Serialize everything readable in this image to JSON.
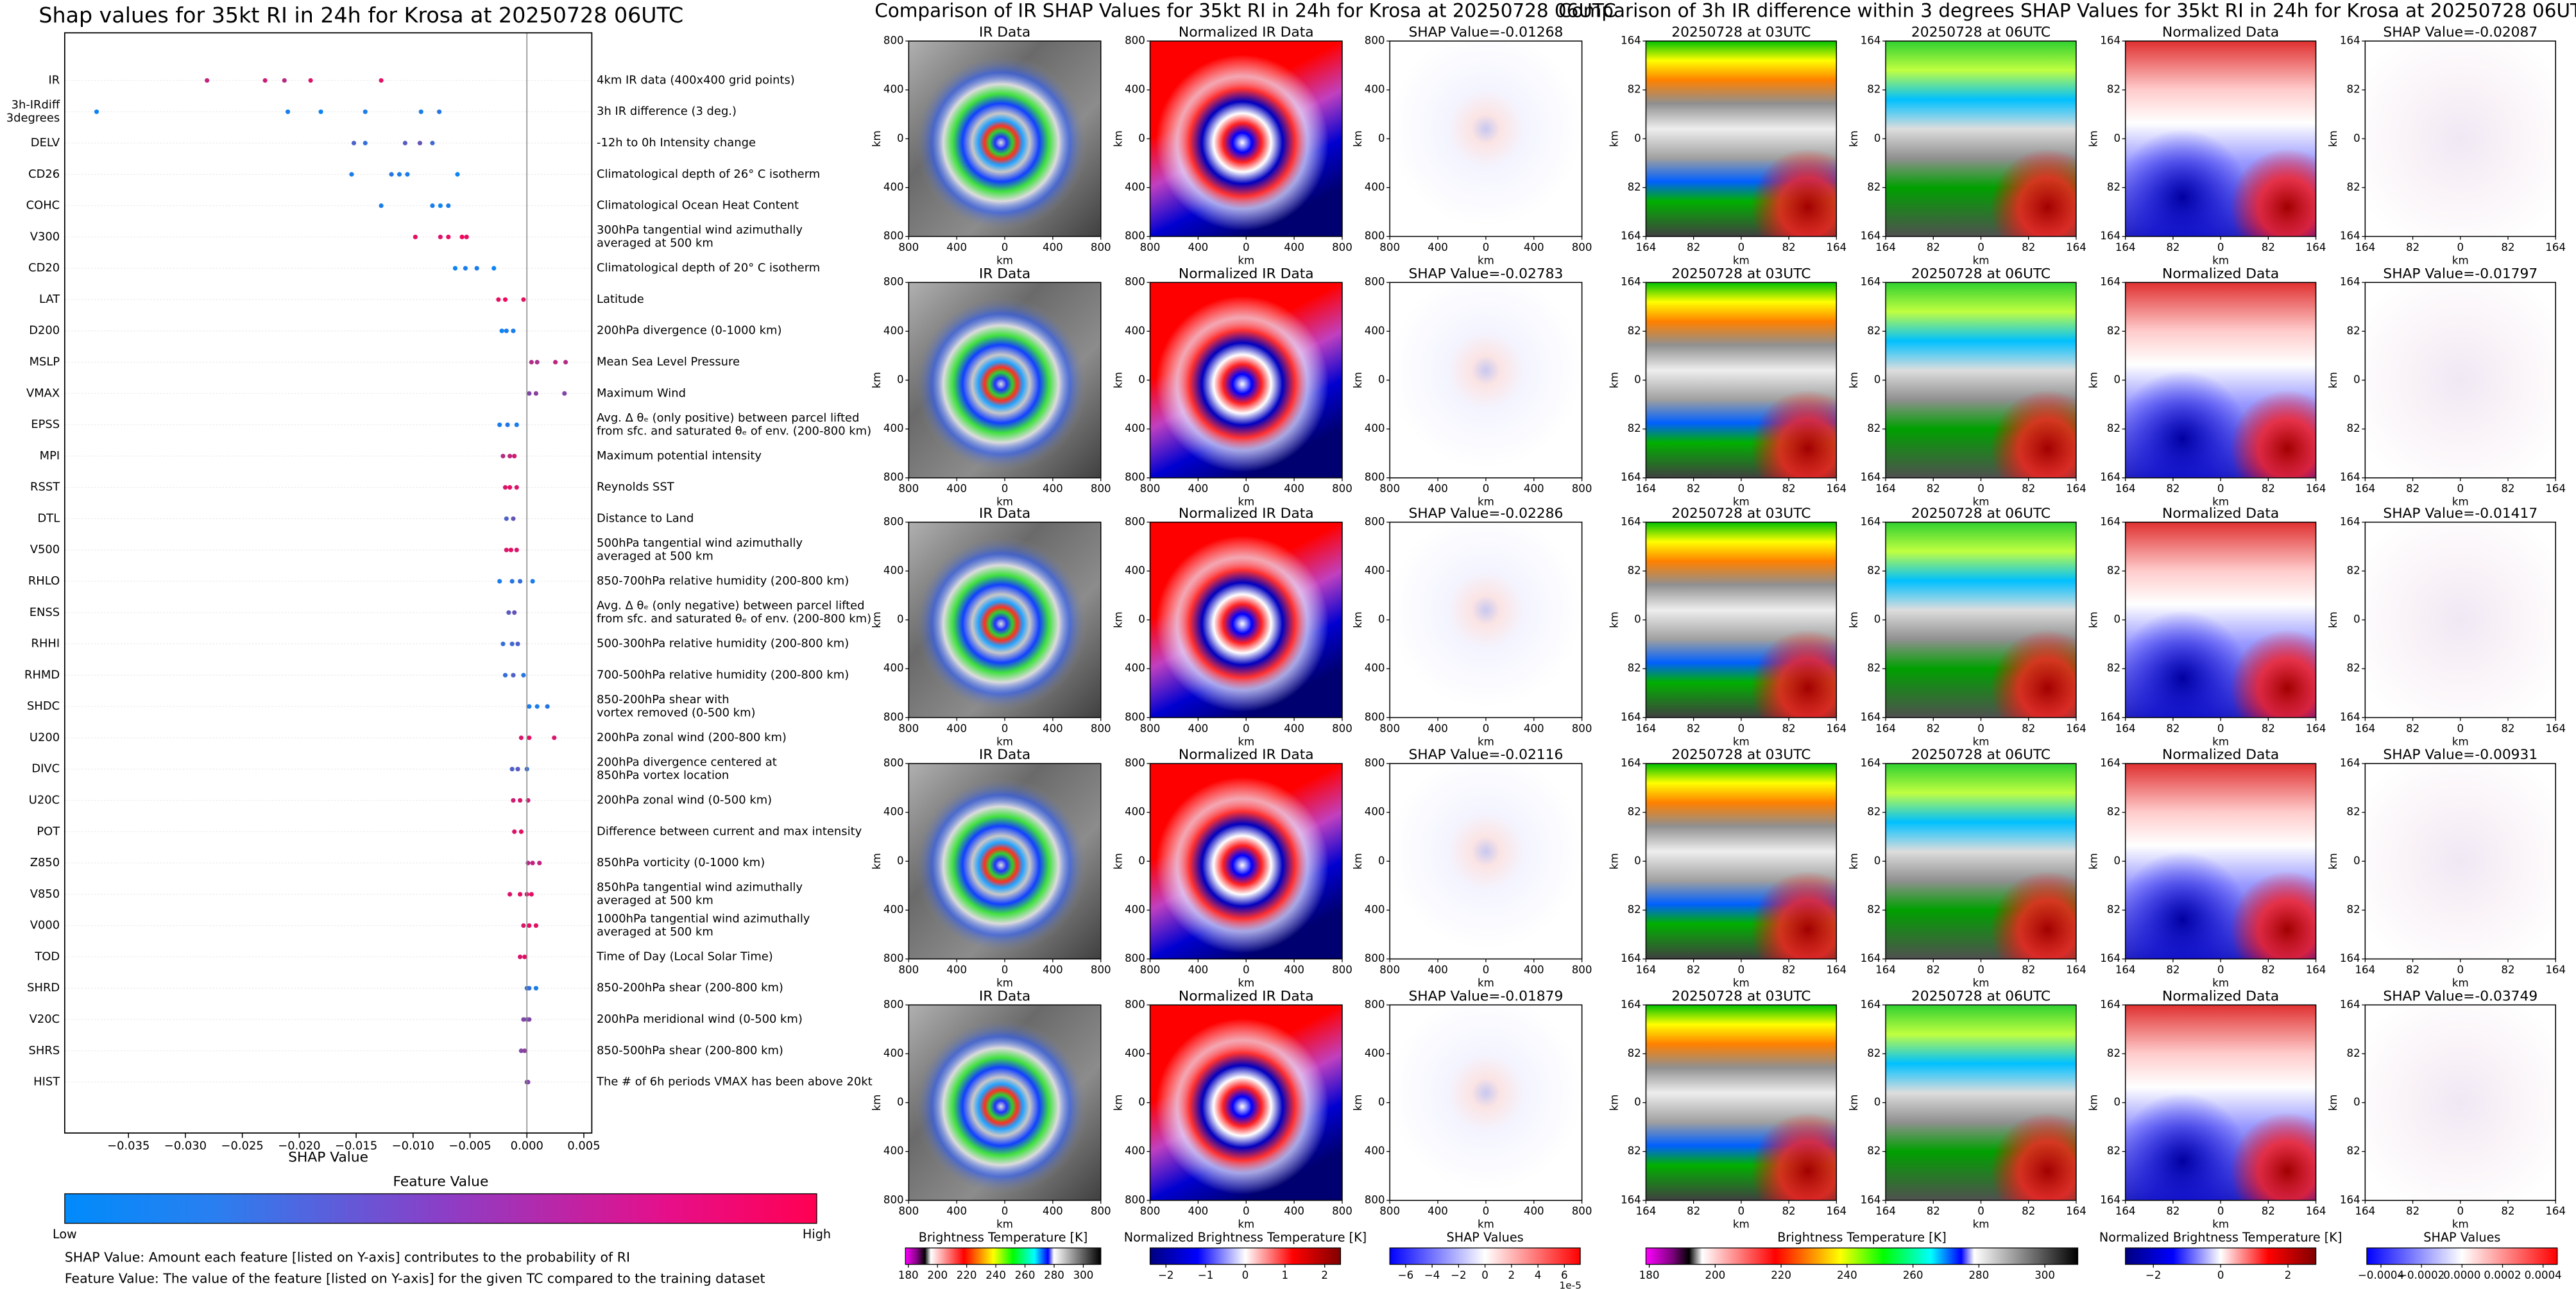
{
  "chart_data": {
    "type": "strip",
    "title": "Shap values for 35kt RI in 24h for Krosa at 20250728 06UTC",
    "xlabel": "SHAP Value",
    "xlim": [
      -0.0406,
      0.0057
    ],
    "xticks": [
      {
        "value": -0.035,
        "label": "−0.035"
      },
      {
        "value": -0.03,
        "label": "−0.030"
      },
      {
        "value": -0.025,
        "label": "−0.025"
      },
      {
        "value": -0.02,
        "label": "−0.020"
      },
      {
        "value": -0.015,
        "label": "−0.015"
      },
      {
        "value": -0.01,
        "label": "−0.010"
      },
      {
        "value": -0.005,
        "label": "−0.005"
      },
      {
        "value": 0,
        "label": "0.000"
      },
      {
        "value": 0.005,
        "label": "0.005"
      }
    ],
    "colorscale": [
      "#008bfb",
      "#ff0052"
    ],
    "colorbar_title": "Feature Value",
    "colorbar_low": "Low",
    "colorbar_high": "High",
    "notes": [
      "SHAP Value: Amount each feature [listed on Y-axis] contributes to the probability of RI",
      "Feature Value: The value of the feature [listed on Y-axis] for the given TC compared to the training dataset"
    ],
    "features": [
      {
        "name": [
          "IR"
        ],
        "description": [
          "4km IR data (400x400 grid points)"
        ],
        "values": [
          -0.0281,
          -0.023,
          -0.0213,
          -0.019,
          -0.0128
        ],
        "feature_values": [
          0.75,
          0.8,
          0.7,
          0.85,
          0.9
        ]
      },
      {
        "name": [
          "3h-IRdiff",
          "3degrees"
        ],
        "description": [
          "3h IR difference (3 deg.)"
        ],
        "values": [
          -0.0378,
          -0.021,
          -0.0181,
          -0.0142,
          -0.0093,
          -0.0077
        ],
        "feature_values": [
          0.05,
          0.1,
          0.05,
          0.1,
          0.1,
          0.15
        ]
      },
      {
        "name": [
          "DELV"
        ],
        "description": [
          "-12h to 0h Intensity change"
        ],
        "values": [
          -0.0152,
          -0.0142,
          -0.0107,
          -0.0094,
          -0.0083
        ],
        "feature_values": [
          0.3,
          0.2,
          0.35,
          0.4,
          0.25
        ]
      },
      {
        "name": [
          "CD26"
        ],
        "description": [
          "Climatological depth of 26° C isotherm"
        ],
        "values": [
          -0.0154,
          -0.0119,
          -0.0112,
          -0.0105,
          -0.0061
        ],
        "feature_values": [
          0.1,
          0.15,
          0.1,
          0.1,
          0.05
        ]
      },
      {
        "name": [
          "COHC"
        ],
        "description": [
          "Climatological Ocean Heat Content"
        ],
        "values": [
          -0.0128,
          -0.0083,
          -0.0076,
          -0.0069
        ],
        "feature_values": [
          0.1,
          0.1,
          0.05,
          0.1
        ]
      },
      {
        "name": [
          "V300"
        ],
        "description": [
          "300hPa tangential wind azimuthally",
          "averaged at 500 km"
        ],
        "values": [
          -0.0098,
          -0.0076,
          -0.0069,
          -0.0057,
          -0.0053
        ],
        "feature_values": [
          0.9,
          0.85,
          0.9,
          0.95,
          0.9
        ]
      },
      {
        "name": [
          "CD20"
        ],
        "description": [
          "Climatological depth of 20° C isotherm"
        ],
        "values": [
          -0.0063,
          -0.0054,
          -0.0044,
          -0.0029
        ],
        "feature_values": [
          0.05,
          0.1,
          0.1,
          0.05
        ]
      },
      {
        "name": [
          "LAT"
        ],
        "description": [
          "Latitude"
        ],
        "values": [
          -0.0025,
          -0.0019,
          -0.0003
        ],
        "feature_values": [
          0.9,
          0.95,
          0.9
        ]
      },
      {
        "name": [
          "D200"
        ],
        "description": [
          "200hPa divergence (0-1000 km)"
        ],
        "values": [
          -0.0022,
          -0.0018,
          -0.0012
        ],
        "feature_values": [
          0.05,
          0.1,
          0.1
        ]
      },
      {
        "name": [
          "MSLP"
        ],
        "description": [
          "Mean Sea Level Pressure"
        ],
        "values": [
          0.0004,
          0.0009,
          0.0025,
          0.0034
        ],
        "feature_values": [
          0.7,
          0.65,
          0.75,
          0.7
        ]
      },
      {
        "name": [
          "VMAX"
        ],
        "description": [
          "Maximum Wind"
        ],
        "values": [
          0.0002,
          0.0008,
          0.0033
        ],
        "feature_values": [
          0.5,
          0.55,
          0.5
        ]
      },
      {
        "name": [
          "EPSS"
        ],
        "description": [
          "Avg. Δ θₑ (only positive) between parcel lifted",
          "from sfc. and saturated θₑ of env. (200-800 km)"
        ],
        "values": [
          -0.0024,
          -0.0017,
          -0.0009
        ],
        "feature_values": [
          0.1,
          0.15,
          0.1
        ]
      },
      {
        "name": [
          "MPI"
        ],
        "description": [
          "Maximum potential intensity"
        ],
        "values": [
          -0.0021,
          -0.0015,
          -0.0011
        ],
        "feature_values": [
          0.7,
          0.75,
          0.8
        ]
      },
      {
        "name": [
          "RSST"
        ],
        "description": [
          "Reynolds SST"
        ],
        "values": [
          -0.0019,
          -0.0015,
          -0.0009
        ],
        "feature_values": [
          0.85,
          0.9,
          0.85
        ]
      },
      {
        "name": [
          "DTL"
        ],
        "description": [
          "Distance to Land"
        ],
        "values": [
          -0.0018,
          -0.0012
        ],
        "feature_values": [
          0.3,
          0.4
        ]
      },
      {
        "name": [
          "V500"
        ],
        "description": [
          "500hPa tangential wind azimuthally",
          "averaged at 500 km"
        ],
        "values": [
          -0.0018,
          -0.0014,
          -0.0009
        ],
        "feature_values": [
          0.85,
          0.9,
          0.85
        ]
      },
      {
        "name": [
          "RHLO"
        ],
        "description": [
          "850-700hPa relative humidity (200-800 km)"
        ],
        "values": [
          -0.0024,
          -0.0013,
          -0.0006,
          0.0005
        ],
        "feature_values": [
          0.1,
          0.15,
          0.2,
          0.1
        ]
      },
      {
        "name": [
          "ENSS"
        ],
        "description": [
          "Avg. Δ θₑ (only negative) between parcel lifted",
          "from sfc. and saturated θₑ of env. (200-800 km)"
        ],
        "values": [
          -0.0016,
          -0.0011
        ],
        "feature_values": [
          0.35,
          0.4
        ]
      },
      {
        "name": [
          "RHHI"
        ],
        "description": [
          "500-300hPa relative humidity (200-800 km)"
        ],
        "values": [
          -0.0021,
          -0.0013,
          -0.0008
        ],
        "feature_values": [
          0.2,
          0.25,
          0.3
        ]
      },
      {
        "name": [
          "RHMD"
        ],
        "description": [
          "700-500hPa relative humidity (200-800 km)"
        ],
        "values": [
          -0.0019,
          -0.0012,
          -0.0003
        ],
        "feature_values": [
          0.2,
          0.3,
          0.15
        ]
      },
      {
        "name": [
          "SHDC"
        ],
        "description": [
          "850-200hPa shear with",
          "vortex removed (0-500 km)"
        ],
        "values": [
          0.0002,
          0.0009,
          0.0018
        ],
        "feature_values": [
          0.1,
          0.1,
          0.15
        ]
      },
      {
        "name": [
          "U200"
        ],
        "description": [
          "200hPa zonal wind (200-800 km)"
        ],
        "values": [
          -0.0005,
          0.0002,
          0.0024
        ],
        "feature_values": [
          0.85,
          0.9,
          0.85
        ]
      },
      {
        "name": [
          "DIVC"
        ],
        "description": [
          "200hPa divergence centered at",
          "850hPa vortex location"
        ],
        "values": [
          -0.0013,
          -0.0008,
          0.0
        ],
        "feature_values": [
          0.3,
          0.35,
          0.2
        ]
      },
      {
        "name": [
          "U20C"
        ],
        "description": [
          "200hPa zonal wind (0-500 km)"
        ],
        "values": [
          -0.0012,
          -0.0006,
          0.0001
        ],
        "feature_values": [
          0.8,
          0.85,
          0.8
        ]
      },
      {
        "name": [
          "POT"
        ],
        "description": [
          "Difference between current and max intensity"
        ],
        "values": [
          -0.0011,
          -0.0005
        ],
        "feature_values": [
          0.85,
          0.9
        ]
      },
      {
        "name": [
          "Z850"
        ],
        "description": [
          "850hPa vorticity (0-1000 km)"
        ],
        "values": [
          0.0001,
          0.0005,
          0.0011
        ],
        "feature_values": [
          0.7,
          0.75,
          0.75
        ]
      },
      {
        "name": [
          "V850"
        ],
        "description": [
          "850hPa tangential wind azimuthally",
          "averaged at 500 km"
        ],
        "values": [
          -0.0015,
          -0.0006,
          0.0,
          0.0004
        ],
        "feature_values": [
          0.85,
          0.9,
          0.85,
          0.9
        ]
      },
      {
        "name": [
          "V000"
        ],
        "description": [
          "1000hPa tangential wind azimuthally",
          "averaged at 500 km"
        ],
        "values": [
          -0.0003,
          0.0002,
          0.0008
        ],
        "feature_values": [
          0.85,
          0.9,
          0.9
        ]
      },
      {
        "name": [
          "TOD"
        ],
        "description": [
          "Time of Day (Local Solar Time)"
        ],
        "values": [
          -0.0006,
          -0.0002
        ],
        "feature_values": [
          0.85,
          0.9
        ]
      },
      {
        "name": [
          "SHRD"
        ],
        "description": [
          "850-200hPa shear (200-800 km)"
        ],
        "values": [
          0.0,
          0.0002,
          0.0008
        ],
        "feature_values": [
          0.15,
          0.2,
          0.1
        ]
      },
      {
        "name": [
          "V20C"
        ],
        "description": [
          "200hPa meridional wind (0-500 km)"
        ],
        "values": [
          -0.0003,
          0.0,
          0.0002
        ],
        "feature_values": [
          0.5,
          0.45,
          0.5
        ]
      },
      {
        "name": [
          "SHRS"
        ],
        "description": [
          "850-500hPa shear (200-800 km)"
        ],
        "values": [
          -0.0005,
          -0.0002
        ],
        "feature_values": [
          0.5,
          0.55
        ]
      },
      {
        "name": [
          "HIST"
        ],
        "description": [
          "The # of 6h periods VMAX has been above 20kt"
        ],
        "values": [
          0.0,
          0.0001
        ],
        "feature_values": [
          0.5,
          0.5
        ]
      }
    ]
  },
  "figures": [
    {
      "title": "Comparison of IR SHAP Values for 35kt RI in 24h for Krosa at 20250728 06UTC",
      "axis_label": "km",
      "ticks": [
        "800",
        "400",
        "0",
        "400",
        "800"
      ],
      "rows": [
        {
          "titles": [
            "IR Data",
            "Normalized IR Data",
            "SHAP Value=-0.01268"
          ]
        },
        {
          "titles": [
            "IR Data",
            "Normalized IR Data",
            "SHAP Value=-0.02783"
          ]
        },
        {
          "titles": [
            "IR Data",
            "Normalized IR Data",
            "SHAP Value=-0.02286"
          ]
        },
        {
          "titles": [
            "IR Data",
            "Normalized IR Data",
            "SHAP Value=-0.02116"
          ]
        },
        {
          "titles": [
            "IR Data",
            "Normalized IR Data",
            "SHAP Value=-0.01879"
          ]
        }
      ],
      "colorbars": [
        {
          "label": "Brightness Temperature [K]",
          "lim": [
            178,
            312
          ],
          "ticks": [
            180,
            200,
            220,
            240,
            260,
            280,
            300
          ]
        },
        {
          "label": "Normalized Brightness Temperature [K]",
          "lim": [
            -2.4,
            2.4
          ],
          "ticks": [
            {
              "value": -2,
              "label": "−2"
            },
            {
              "value": -1,
              "label": "−1"
            },
            0,
            1,
            2
          ]
        },
        {
          "label": "SHAP Values",
          "lim": [
            -7.2,
            7.2
          ],
          "ticks": [
            {
              "value": -6,
              "label": "−6"
            },
            {
              "value": -4,
              "label": "−4"
            },
            {
              "value": -2,
              "label": "−2"
            },
            0,
            2,
            4,
            6
          ],
          "offset": "1e-5"
        }
      ]
    },
    {
      "title": "Comparison of 3h IR difference within 3 degrees SHAP Values for 35kt RI in 24h for Krosa at 20250728 06UTC",
      "axis_label": "km",
      "ticks": [
        "164",
        "82",
        "0",
        "82",
        "164"
      ],
      "rows": [
        {
          "titles": [
            "20250728 at 03UTC",
            "20250728 at 06UTC",
            "Normalized Data",
            "SHAP Value=-0.02087"
          ]
        },
        {
          "titles": [
            "20250728 at 03UTC",
            "20250728 at 06UTC",
            "Normalized Data",
            "SHAP Value=-0.01797"
          ]
        },
        {
          "titles": [
            "20250728 at 03UTC",
            "20250728 at 06UTC",
            "Normalized Data",
            "SHAP Value=-0.01417"
          ]
        },
        {
          "titles": [
            "20250728 at 03UTC",
            "20250728 at 06UTC",
            "Normalized Data",
            "SHAP Value=-0.00931"
          ]
        },
        {
          "titles": [
            "20250728 at 03UTC",
            "20250728 at 06UTC",
            "Normalized Data",
            "SHAP Value=-0.03749"
          ]
        }
      ],
      "colorbars": [
        {
          "label": "Brightness Temperature [K]",
          "lim": [
            179,
            310
          ],
          "ticks": [
            180,
            200,
            220,
            240,
            260,
            280,
            300
          ]
        },
        {
          "label": "Normalized Brightness Temperature [K]",
          "lim": [
            -2.83,
            2.83
          ],
          "ticks": [
            {
              "value": -2,
              "label": "−2"
            },
            0,
            2
          ]
        },
        {
          "label": "SHAP Values",
          "lim": [
            -0.00047,
            0.00047
          ],
          "ticks": [
            {
              "value": -0.0004,
              "label": "−0.0004"
            },
            {
              "value": -0.0002,
              "label": "−0.0002"
            },
            {
              "value": 0,
              "label": "0.0000"
            },
            0.0002,
            0.0004
          ]
        }
      ]
    }
  ]
}
